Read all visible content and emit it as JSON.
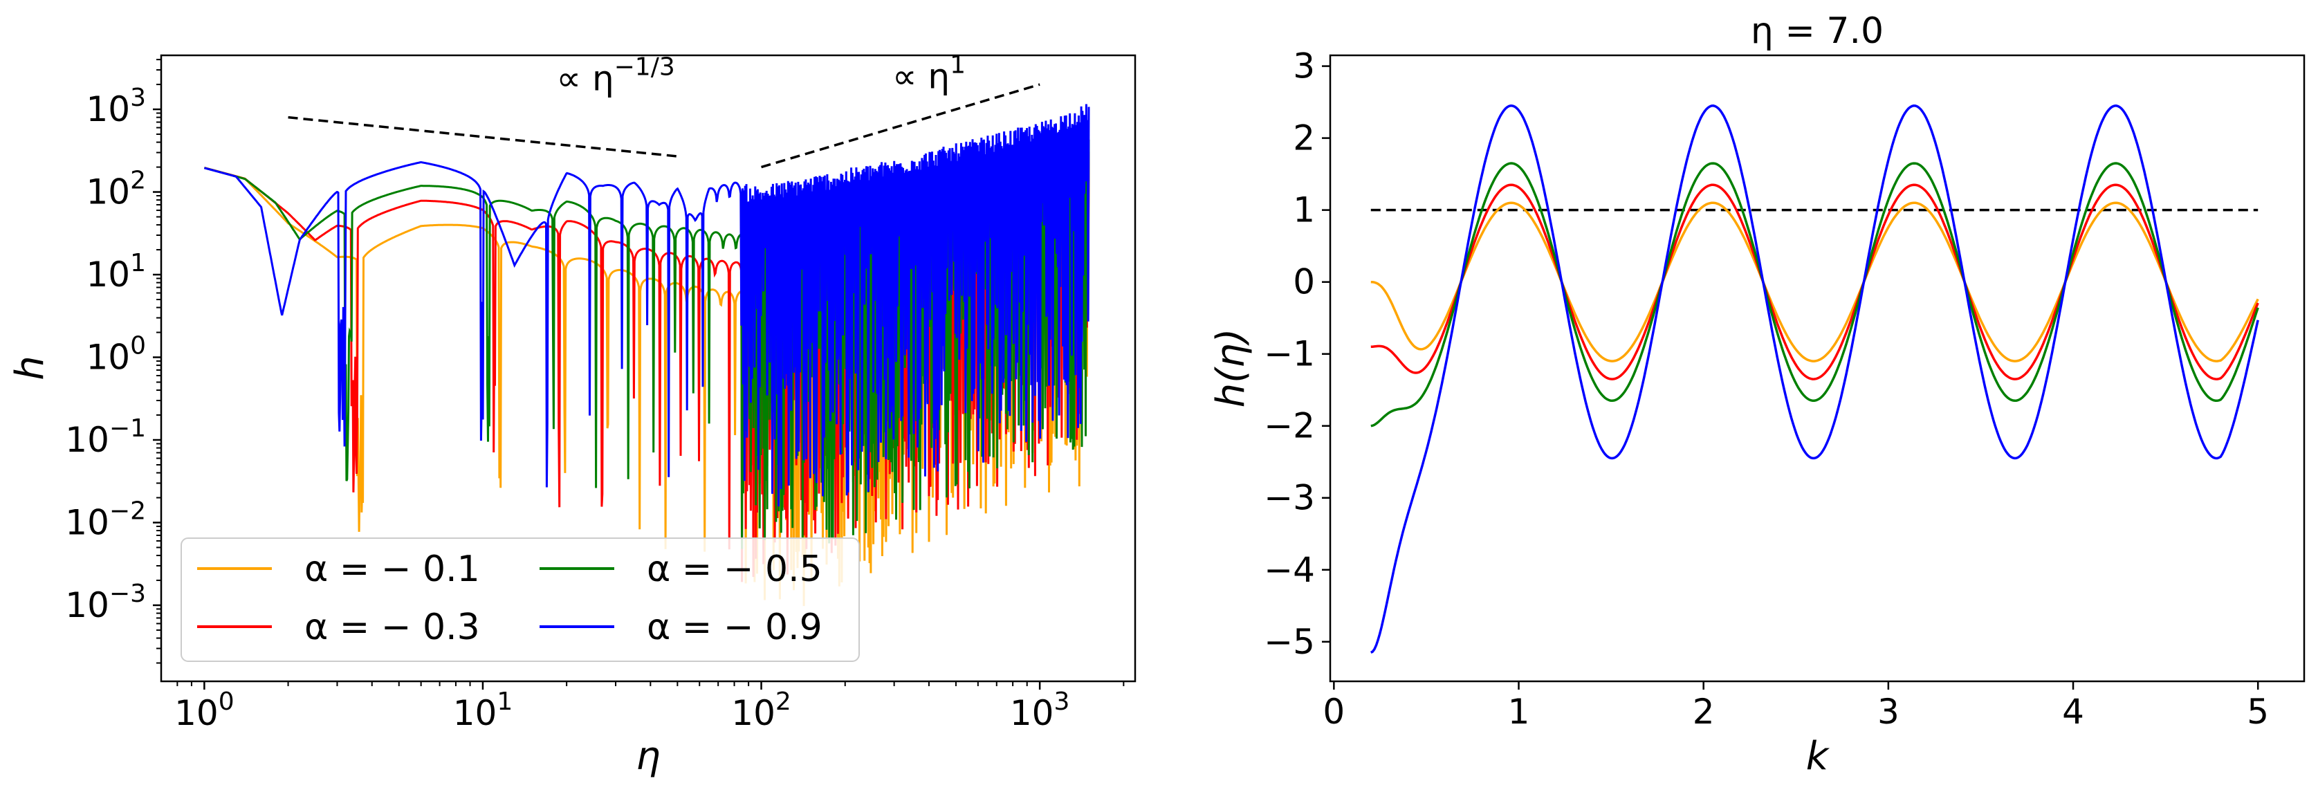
{
  "chart_data": [
    {
      "type": "line",
      "xlabel": "η",
      "ylabel": "h",
      "xscale": "log",
      "yscale": "log",
      "xlim": [
        0.7,
        2200
      ],
      "ylim": [
        0.00012,
        4500
      ],
      "xticks": [
        {
          "base": "10",
          "exp": "0",
          "value": 1
        },
        {
          "base": "10",
          "exp": "1",
          "value": 10
        },
        {
          "base": "10",
          "exp": "2",
          "value": 100
        },
        {
          "base": "10",
          "exp": "3",
          "value": 1000
        }
      ],
      "yticks": [
        {
          "base": "10",
          "exp": "−3",
          "value": 0.001
        },
        {
          "base": "10",
          "exp": "−2",
          "value": 0.01
        },
        {
          "base": "10",
          "exp": "−1",
          "value": 0.1
        },
        {
          "base": "10",
          "exp": "0",
          "value": 1
        },
        {
          "base": "10",
          "exp": "1",
          "value": 10
        },
        {
          "base": "10",
          "exp": "2",
          "value": 100
        },
        {
          "base": "10",
          "exp": "3",
          "value": 1000
        }
      ],
      "legend": {
        "placement": "lower left",
        "ncol": 2
      },
      "annotations": [
        {
          "base": "∝ η",
          "exp": "−1/3",
          "x": 30,
          "y": 1700
        },
        {
          "base": "∝ η",
          "exp": "1",
          "x": 400,
          "y": 1800
        }
      ],
      "reference_lines": [
        {
          "x": [
            2,
            50
          ],
          "y": [
            800,
            270
          ],
          "style": "dashed"
        },
        {
          "x": [
            100,
            1000
          ],
          "y": [
            200,
            2000
          ],
          "style": "dashed"
        }
      ],
      "series": [
        {
          "name": "α = − 0.1",
          "color": "#ffa500",
          "envelope": {
            "x": [
              1,
              1.4,
              2,
              3,
              6,
              10,
              15,
              20,
              30,
              40,
              60,
              80,
              150,
              400,
              1500
            ],
            "y": [
              200,
              150,
              45,
              20,
              40,
              40,
              22,
              18,
              12,
              9,
              7,
              6,
              10,
              50,
              300
            ]
          }
        },
        {
          "name": "α = − 0.3",
          "color": "#ff0000",
          "envelope": {
            "x": [
              1,
              1.4,
              2,
              2.5,
              3,
              6,
              10,
              15,
              20,
              30,
              40,
              60,
              80,
              150,
              400,
              1500
            ],
            "y": [
              200,
              150,
              60,
              30,
              50,
              80,
              70,
              35,
              50,
              25,
              20,
              16,
              14,
              20,
              80,
              500
            ]
          }
        },
        {
          "name": "α = − 0.5",
          "color": "#008000",
          "envelope": {
            "x": [
              1,
              1.4,
              1.8,
              2.2,
              3,
              6,
              10,
              15,
              20,
              30,
              40,
              60,
              80,
              150,
              400,
              1500
            ],
            "y": [
              200,
              150,
              80,
              30,
              80,
              120,
              110,
              60,
              80,
              45,
              40,
              35,
              30,
              40,
              150,
              700
            ]
          }
        },
        {
          "name": "α = − 0.9",
          "color": "#0000ff",
          "envelope": {
            "x": [
              1,
              1.3,
              1.6,
              1.9,
              2.2,
              3,
              6,
              10,
              13,
              20,
              27,
              35,
              43,
              50,
              58,
              65,
              80,
              100,
              300,
              1000,
              1500
            ],
            "y": [
              200,
              160,
              70,
              3.5,
              30,
              150,
              230,
              160,
              13,
              170,
              120,
              130,
              70,
              110,
              45,
              110,
              130,
              120,
              250,
              700,
              1200
            ]
          }
        }
      ]
    },
    {
      "type": "line",
      "title": "η = 7.0",
      "xlabel": "k",
      "ylabel": "h(η)",
      "xlim": [
        -0.02,
        5.25
      ],
      "ylim": [
        -5.55,
        3.15
      ],
      "xticks": [
        0,
        1,
        2,
        3,
        4,
        5
      ],
      "yticks": [
        -5,
        -4,
        -3,
        -2,
        -1,
        0,
        1,
        2,
        3
      ],
      "reference_line": {
        "x": [
          0.2,
          5.0
        ],
        "y": [
          1,
          1
        ],
        "style": "dashed"
      },
      "k_range": [
        0.2,
        5.0
      ],
      "series": [
        {
          "name": "α = − 0.1",
          "color": "#ffa500",
          "amplitude": 1.1,
          "phase_start": 0.0
        },
        {
          "name": "α = − 0.3",
          "color": "#ff0000",
          "amplitude": 1.35,
          "phase_start": -0.9
        },
        {
          "name": "α = − 0.5",
          "color": "#008000",
          "amplitude": 1.65,
          "phase_start": -2.0
        },
        {
          "name": "α = − 0.9",
          "color": "#0000ff",
          "amplitude": 2.45,
          "phase_start": -5.15
        }
      ]
    }
  ]
}
